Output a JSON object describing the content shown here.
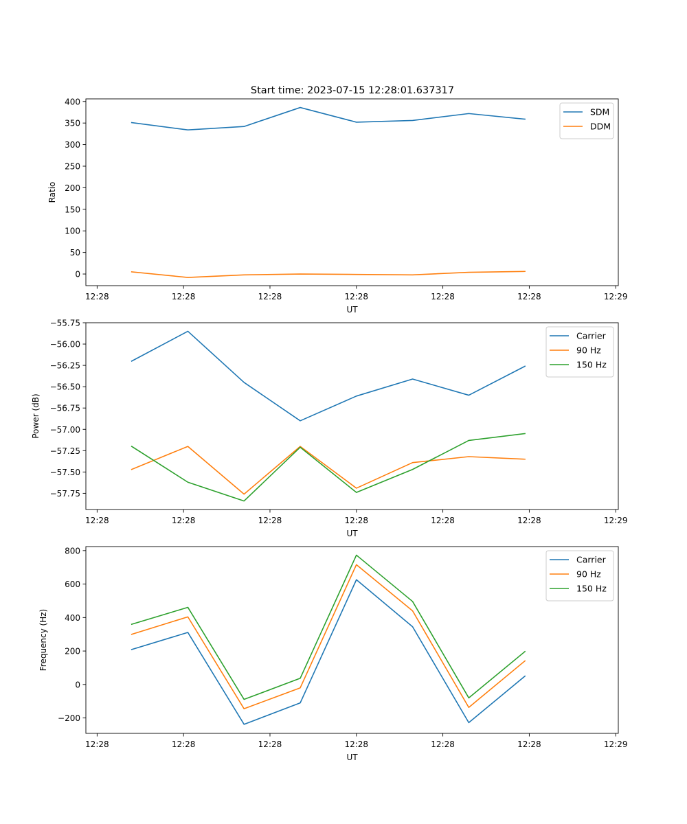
{
  "figure_title": "Start time: 2023-07-15 12:28:01.637317",
  "chart_data": [
    {
      "type": "line",
      "title": "Start time: 2023-07-15 12:28:01.637317",
      "xlabel": "UT",
      "ylabel": "Ratio",
      "x": [
        0.4,
        1.05,
        1.7,
        2.35,
        3.0,
        3.65,
        4.3,
        4.95
      ],
      "x_ticks": [
        {
          "v": 0,
          "label": "12:28"
        },
        {
          "v": 1,
          "label": "12:28"
        },
        {
          "v": 2,
          "label": "12:28"
        },
        {
          "v": 3,
          "label": "12:28"
        },
        {
          "v": 4,
          "label": "12:28"
        },
        {
          "v": 5,
          "label": "12:28"
        },
        {
          "v": 6,
          "label": "12:29"
        }
      ],
      "xlim": [
        -0.13,
        6.03
      ],
      "ylim": [
        -27,
        406
      ],
      "y_ticks": [
        {
          "v": 400,
          "label": "400"
        },
        {
          "v": 350,
          "label": "350"
        },
        {
          "v": 300,
          "label": "300"
        },
        {
          "v": 250,
          "label": "250"
        },
        {
          "v": 200,
          "label": "200"
        },
        {
          "v": 150,
          "label": "150"
        },
        {
          "v": 100,
          "label": "100"
        },
        {
          "v": 50,
          "label": "50"
        },
        {
          "v": 0,
          "label": "0"
        }
      ],
      "legend_position": "top-right",
      "series": [
        {
          "name": "SDM",
          "color": "#1f77b4",
          "values": [
            351,
            334,
            342,
            386,
            352,
            356,
            372,
            359
          ]
        },
        {
          "name": "DDM",
          "color": "#ff7f0e",
          "values": [
            5,
            -8,
            -2,
            0,
            -1,
            -2,
            4,
            6
          ]
        }
      ]
    },
    {
      "type": "line",
      "title": "",
      "xlabel": "UT",
      "ylabel": "Power (dB)",
      "x": [
        0.4,
        1.05,
        1.7,
        2.35,
        3.0,
        3.65,
        4.3,
        4.95
      ],
      "x_ticks": [
        {
          "v": 0,
          "label": "12:28"
        },
        {
          "v": 1,
          "label": "12:28"
        },
        {
          "v": 2,
          "label": "12:28"
        },
        {
          "v": 3,
          "label": "12:28"
        },
        {
          "v": 4,
          "label": "12:28"
        },
        {
          "v": 5,
          "label": "12:28"
        },
        {
          "v": 6,
          "label": "12:29"
        }
      ],
      "xlim": [
        -0.13,
        6.03
      ],
      "ylim": [
        -57.94,
        -55.75
      ],
      "y_ticks": [
        {
          "v": -55.75,
          "label": "−55.75"
        },
        {
          "v": -56.0,
          "label": "−56.00"
        },
        {
          "v": -56.25,
          "label": "−56.25"
        },
        {
          "v": -56.5,
          "label": "−56.50"
        },
        {
          "v": -56.75,
          "label": "−56.75"
        },
        {
          "v": -57.0,
          "label": "−57.00"
        },
        {
          "v": -57.25,
          "label": "−57.25"
        },
        {
          "v": -57.5,
          "label": "−57.50"
        },
        {
          "v": -57.75,
          "label": "−57.75"
        }
      ],
      "legend_position": "top-right",
      "series": [
        {
          "name": "Carrier",
          "color": "#1f77b4",
          "values": [
            -56.2,
            -55.85,
            -56.45,
            -56.9,
            -56.61,
            -56.41,
            -56.6,
            -56.26
          ]
        },
        {
          "name": "90 Hz",
          "color": "#ff7f0e",
          "values": [
            -57.47,
            -57.2,
            -57.76,
            -57.2,
            -57.69,
            -57.39,
            -57.32,
            -57.35
          ]
        },
        {
          "name": "150 Hz",
          "color": "#2ca02c",
          "values": [
            -57.2,
            -57.62,
            -57.84,
            -57.21,
            -57.74,
            -57.47,
            -57.13,
            -57.05
          ]
        }
      ]
    },
    {
      "type": "line",
      "title": "",
      "xlabel": "UT",
      "ylabel": "Frequency (Hz)",
      "x": [
        0.4,
        1.05,
        1.7,
        2.35,
        3.0,
        3.65,
        4.3,
        4.95
      ],
      "x_ticks": [
        {
          "v": 0,
          "label": "12:28"
        },
        {
          "v": 1,
          "label": "12:28"
        },
        {
          "v": 2,
          "label": "12:28"
        },
        {
          "v": 3,
          "label": "12:28"
        },
        {
          "v": 4,
          "label": "12:28"
        },
        {
          "v": 5,
          "label": "12:28"
        },
        {
          "v": 6,
          "label": "12:29"
        }
      ],
      "xlim": [
        -0.13,
        6.03
      ],
      "ylim": [
        -292,
        824
      ],
      "y_ticks": [
        {
          "v": 800,
          "label": "800"
        },
        {
          "v": 600,
          "label": "600"
        },
        {
          "v": 400,
          "label": "400"
        },
        {
          "v": 200,
          "label": "200"
        },
        {
          "v": 0,
          "label": "0"
        },
        {
          "v": -200,
          "label": "−200"
        }
      ],
      "legend_position": "top-right",
      "series": [
        {
          "name": "Carrier",
          "color": "#1f77b4",
          "values": [
            209,
            311,
            -238,
            -110,
            626,
            345,
            -228,
            50
          ]
        },
        {
          "name": "90 Hz",
          "color": "#ff7f0e",
          "values": [
            300,
            404,
            -145,
            -20,
            716,
            440,
            -137,
            141
          ]
        },
        {
          "name": "150 Hz",
          "color": "#2ca02c",
          "values": [
            360,
            461,
            -89,
            37,
            773,
            496,
            -80,
            197
          ]
        }
      ]
    }
  ]
}
